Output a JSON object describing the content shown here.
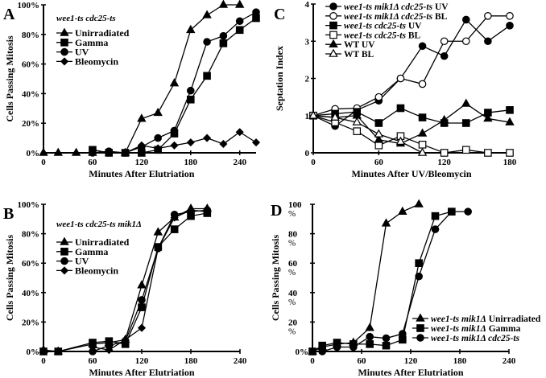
{
  "chart_data": [
    {
      "type": "line",
      "letter": "A",
      "title": "wee1-ts cdc25-ts",
      "xlabel": "Minutes After Elutriation",
      "ylabel": "Cells Passing Mitosis",
      "xlim": [
        0,
        260
      ],
      "ylim": [
        0,
        100
      ],
      "xticks": [
        0,
        60,
        120,
        180,
        240
      ],
      "yticks": [
        0,
        20,
        40,
        60,
        80,
        100
      ],
      "ytick_labels": [
        "0%",
        "20%",
        "40%",
        "60%",
        "80%",
        "100%"
      ],
      "legend": "top-left",
      "series": [
        {
          "name": "Unirradiated",
          "marker": "triangle",
          "x": [
            0,
            18,
            40,
            60,
            100,
            120,
            140,
            160,
            180,
            200,
            220,
            240
          ],
          "y": [
            0,
            0,
            0,
            0,
            0,
            23,
            27,
            47,
            83,
            93,
            100,
            100
          ]
        },
        {
          "name": "Gamma",
          "marker": "square",
          "x": [
            60,
            80,
            100,
            120,
            140,
            160,
            180,
            200,
            220,
            240,
            260
          ],
          "y": [
            2,
            0,
            0,
            0,
            2,
            13,
            36,
            52,
            74,
            83,
            91
          ]
        },
        {
          "name": "UV",
          "marker": "circle",
          "x": [
            60,
            80,
            100,
            120,
            140,
            160,
            180,
            200,
            220,
            240,
            260
          ],
          "y": [
            0,
            1,
            0,
            4,
            10,
            15,
            42,
            75,
            79,
            89,
            95
          ]
        },
        {
          "name": "Bleomycin",
          "marker": "diamond",
          "x": [
            100,
            120,
            140,
            160,
            180,
            200,
            220,
            240,
            260
          ],
          "y": [
            0,
            5,
            3,
            5,
            7,
            10,
            6,
            14,
            7
          ]
        }
      ]
    },
    {
      "type": "line",
      "letter": "B",
      "title": "wee1-ts cdc25-ts mik1Δ",
      "xlabel": "Minutes After Elutriation",
      "ylabel": "Cells Passing Mitosis",
      "xlim": [
        0,
        240
      ],
      "ylim": [
        0,
        100
      ],
      "xticks": [
        0,
        60,
        120,
        180,
        240
      ],
      "yticks": [
        0,
        20,
        40,
        60,
        80,
        100
      ],
      "ytick_labels": [
        "0%",
        "20%",
        "40%",
        "60%",
        "80%",
        "100%"
      ],
      "legend": "top-left",
      "series": [
        {
          "name": "Unirradiated",
          "marker": "triangle",
          "x": [
            0,
            18,
            60,
            80,
            100,
            120,
            140,
            160,
            180,
            200
          ],
          "y": [
            1,
            0,
            5,
            6,
            8,
            45,
            81,
            91,
            97,
            97
          ]
        },
        {
          "name": "Gamma",
          "marker": "square",
          "x": [
            0,
            18,
            60,
            80,
            100,
            120,
            140,
            160,
            180,
            200
          ],
          "y": [
            0,
            0,
            6,
            7,
            5,
            30,
            71,
            83,
            92,
            94
          ]
        },
        {
          "name": "UV",
          "marker": "circle",
          "x": [
            60,
            80,
            100,
            120,
            140,
            160,
            180,
            200
          ],
          "y": [
            0,
            4,
            7,
            35,
            70,
            93,
            95,
            96
          ]
        },
        {
          "name": "Bleomycin",
          "marker": "diamond",
          "x": [
            60,
            80,
            100,
            120,
            140,
            160,
            180,
            200
          ],
          "y": [
            3,
            1,
            8,
            16,
            70,
            91,
            96,
            95
          ]
        }
      ]
    },
    {
      "type": "line",
      "letter": "C",
      "title": "",
      "xlabel": "Minutes After UV/Bleomycin",
      "ylabel": "Septation Index",
      "xlim": [
        0,
        180
      ],
      "ylim": [
        0,
        4
      ],
      "xticks": [
        0,
        60,
        120,
        180
      ],
      "yticks": [
        0,
        1,
        2,
        3,
        4
      ],
      "ytick_labels": [
        "0",
        "1",
        "2",
        "3",
        "4"
      ],
      "legend": "top-left",
      "series": [
        {
          "name": "wee1-ts mik1Δ cdc25-ts UV",
          "marker": "circle",
          "x": [
            0,
            20,
            40,
            60,
            80,
            100,
            120,
            140,
            160,
            180
          ],
          "y": [
            1,
            0.72,
            1.15,
            1.4,
            2,
            2.87,
            2.6,
            3.58,
            3,
            3.42
          ]
        },
        {
          "name": "wee1-ts mik1Δ cdc25-ts BL",
          "marker": "open-circle",
          "x": [
            0,
            20,
            40,
            60,
            80,
            100,
            120,
            140,
            160,
            180
          ],
          "y": [
            1,
            1.18,
            1.2,
            1.5,
            2,
            1.85,
            3,
            3,
            3.68,
            3.68
          ]
        },
        {
          "name": "wee1-ts cdc25-ts UV",
          "marker": "square",
          "x": [
            0,
            20,
            40,
            60,
            80,
            100,
            120,
            140,
            160,
            180
          ],
          "y": [
            1,
            1.05,
            1.1,
            0.8,
            1.2,
            0.95,
            0.8,
            0.8,
            1.08,
            1.15
          ]
        },
        {
          "name": "wee1-ts cdc25-ts BL",
          "marker": "open-square",
          "x": [
            0,
            20,
            40,
            60,
            80,
            100,
            120,
            140,
            160,
            180
          ],
          "y": [
            1,
            0.82,
            0.58,
            0.2,
            0.45,
            0.22,
            0,
            0.08,
            0,
            0
          ]
        },
        {
          "name": "WT UV",
          "marker": "triangle",
          "x": [
            0,
            20,
            40,
            60,
            80,
            100,
            120,
            140,
            160,
            180
          ],
          "y": [
            1,
            0.95,
            1,
            0.35,
            0.25,
            0.52,
            0.88,
            1.32,
            0.92,
            0.82
          ]
        },
        {
          "name": "WT BL",
          "marker": "open-triangle",
          "x": [
            0,
            20,
            40,
            60,
            80,
            100
          ],
          "y": [
            1,
            0.95,
            0.82,
            0.5,
            0.3,
            0
          ]
        }
      ]
    },
    {
      "type": "line",
      "letter": "D",
      "title": "",
      "xlabel": "Minutes After Elutriation",
      "ylabel": "Cells Passing Mitosis",
      "xlim": [
        0,
        240
      ],
      "ylim": [
        0,
        100
      ],
      "xticks": [
        0,
        60,
        120,
        180,
        240
      ],
      "yticks": [
        0,
        20,
        40,
        60,
        80,
        100
      ],
      "ytick_labels": [
        "0%",
        "20 %",
        "40 %",
        "60 %",
        "80 %",
        "100 %"
      ],
      "legend": "bottom-right",
      "series": [
        {
          "name": "wee1-ts mik1Δ Unirradiated",
          "marker": "triangle",
          "x": [
            0,
            12,
            30,
            50,
            70,
            90,
            110,
            130
          ],
          "y": [
            0,
            3,
            5,
            6,
            16,
            87,
            95,
            100
          ]
        },
        {
          "name": "wee1-ts mik1Δ Gamma",
          "marker": "square",
          "x": [
            0,
            12,
            30,
            50,
            70,
            90,
            110,
            130,
            150,
            170
          ],
          "y": [
            0,
            4,
            6,
            5,
            5,
            4,
            8,
            60,
            92,
            95
          ]
        },
        {
          "name": "wee1-ts mik1Δ cdc25-ts",
          "marker": "circle",
          "x": [
            0,
            12,
            30,
            50,
            70,
            90,
            110,
            130,
            150,
            170,
            190
          ],
          "y": [
            0,
            0,
            3,
            3,
            10,
            9,
            12,
            51,
            83,
            95,
            95
          ]
        }
      ]
    }
  ]
}
